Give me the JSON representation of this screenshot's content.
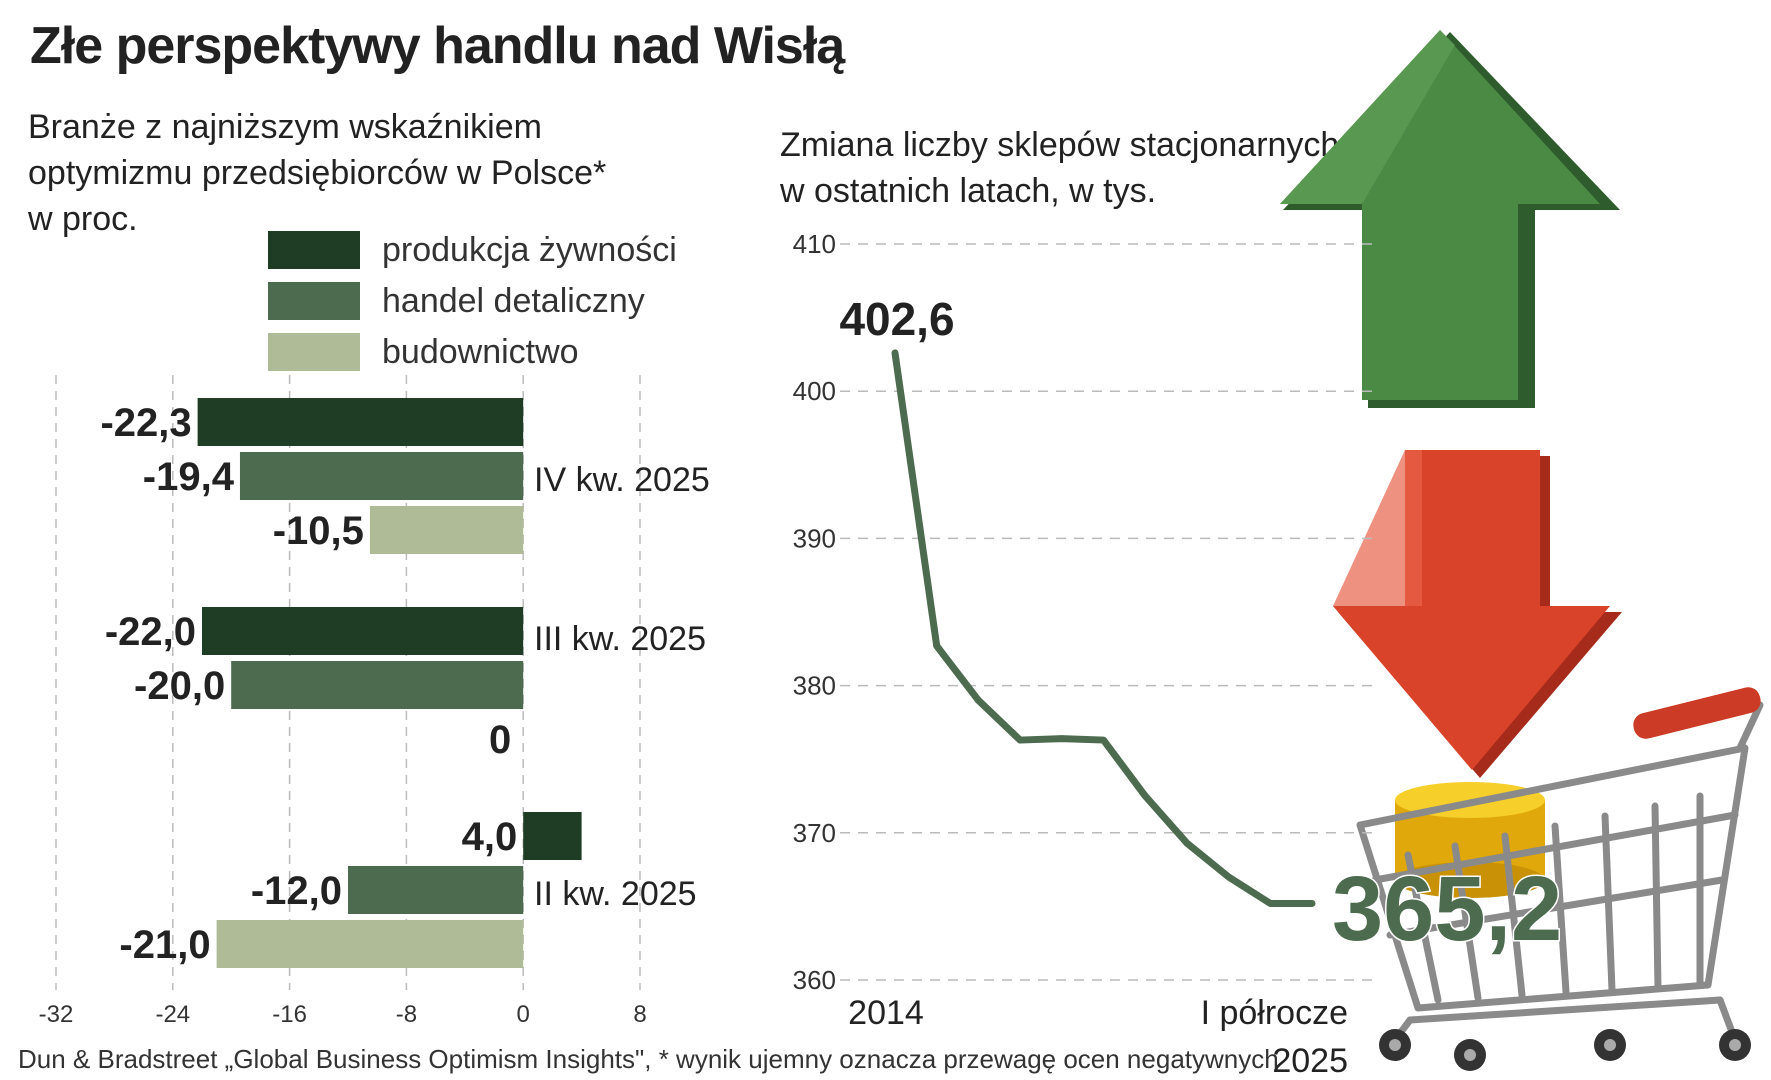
{
  "title": "Złe perspektywy handlu nad Wisłą",
  "colors": {
    "food": "#1f3d24",
    "retail": "#4d6b4f",
    "construction": "#aebb96",
    "line": "#4d6b4f",
    "grid": "#bbbbbb",
    "text": "#222222",
    "arrow_up": "#3f7a3b",
    "arrow_down": "#d33a24",
    "coin": "#f1c40f"
  },
  "left_panel": {
    "subtitle": [
      "Branże z najniższym wskaźnikiem",
      "optymizmu przedsiębiorców w Polsce*",
      "w proc."
    ]
  },
  "right_panel": {
    "subtitle": [
      "Zmiana liczby sklepów stacjonarnych",
      "w ostatnich latach, w tys."
    ]
  },
  "source": "Dun & Bradstreet „Global Business Optimism Insights\", * wynik ujemny oznacza przewagę ocen negatywnych",
  "chart_data": [
    {
      "type": "bar",
      "orientation": "horizontal",
      "title": "Branże z najniższym wskaźnikiem optymizmu przedsiębiorców w Polsce* w proc.",
      "categories": [
        "IV kw. 2025",
        "III kw. 2025",
        "II kw. 2025"
      ],
      "series": [
        {
          "name": "produkcja żywności",
          "values": [
            -22.3,
            -22.0,
            4.0
          ],
          "labels": [
            "-22,3",
            "-22,0",
            "4,0"
          ],
          "color": "#1f3d24"
        },
        {
          "name": "handel detaliczny",
          "values": [
            -19.4,
            -20.0,
            -12.0
          ],
          "labels": [
            "-19,4",
            "-20,0",
            "-12,0"
          ],
          "color": "#4d6b4f"
        },
        {
          "name": "budownictwo",
          "values": [
            -10.5,
            0,
            -21.0
          ],
          "labels": [
            "-10,5",
            "0",
            "-21,0"
          ],
          "color": "#aebb96"
        }
      ],
      "xlim": [
        -32,
        8
      ],
      "xticks": [
        -32,
        -24,
        -16,
        -8,
        0,
        8
      ],
      "legend_position": "top-right",
      "grid": true
    },
    {
      "type": "line",
      "title": "Zmiana liczby sklepów stacjonarnych w ostatnich latach, w tys.",
      "x": [
        0,
        1,
        2,
        3,
        4,
        5,
        6,
        7,
        8,
        9,
        10
      ],
      "values": [
        402.6,
        382.7,
        379.0,
        376.3,
        376.4,
        376.3,
        372.5,
        369.3,
        367.0,
        365.2,
        365.2
      ],
      "x_labels": [
        {
          "index": 0,
          "text": "2014"
        },
        {
          "index": 10,
          "lines": [
            "I półrocze",
            "2025"
          ]
        }
      ],
      "start_label": "402,6",
      "end_label": "365,2",
      "ylim": [
        360,
        410
      ],
      "yticks": [
        360,
        370,
        380,
        390,
        400,
        410
      ],
      "grid": true
    }
  ]
}
